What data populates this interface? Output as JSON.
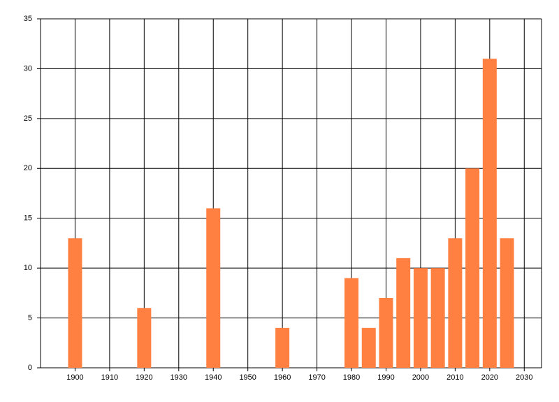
{
  "chart_data": {
    "type": "bar",
    "x": [
      1900,
      1920,
      1940,
      1960,
      1980,
      1985,
      1990,
      1995,
      2000,
      2005,
      2010,
      2015,
      2020,
      2025
    ],
    "values": [
      13,
      6,
      16,
      4,
      9,
      4,
      7,
      11,
      10,
      10,
      13,
      20,
      31,
      13
    ],
    "color": "#ff8040",
    "xlim": [
      1890,
      2035
    ],
    "xticks": [
      1900,
      1910,
      1920,
      1930,
      1940,
      1950,
      1960,
      1970,
      1980,
      1990,
      2000,
      2010,
      2020,
      2030
    ],
    "ylim": [
      0,
      35
    ],
    "yticks": [
      0,
      5,
      10,
      15,
      20,
      25,
      30,
      35
    ],
    "grid": true
  }
}
